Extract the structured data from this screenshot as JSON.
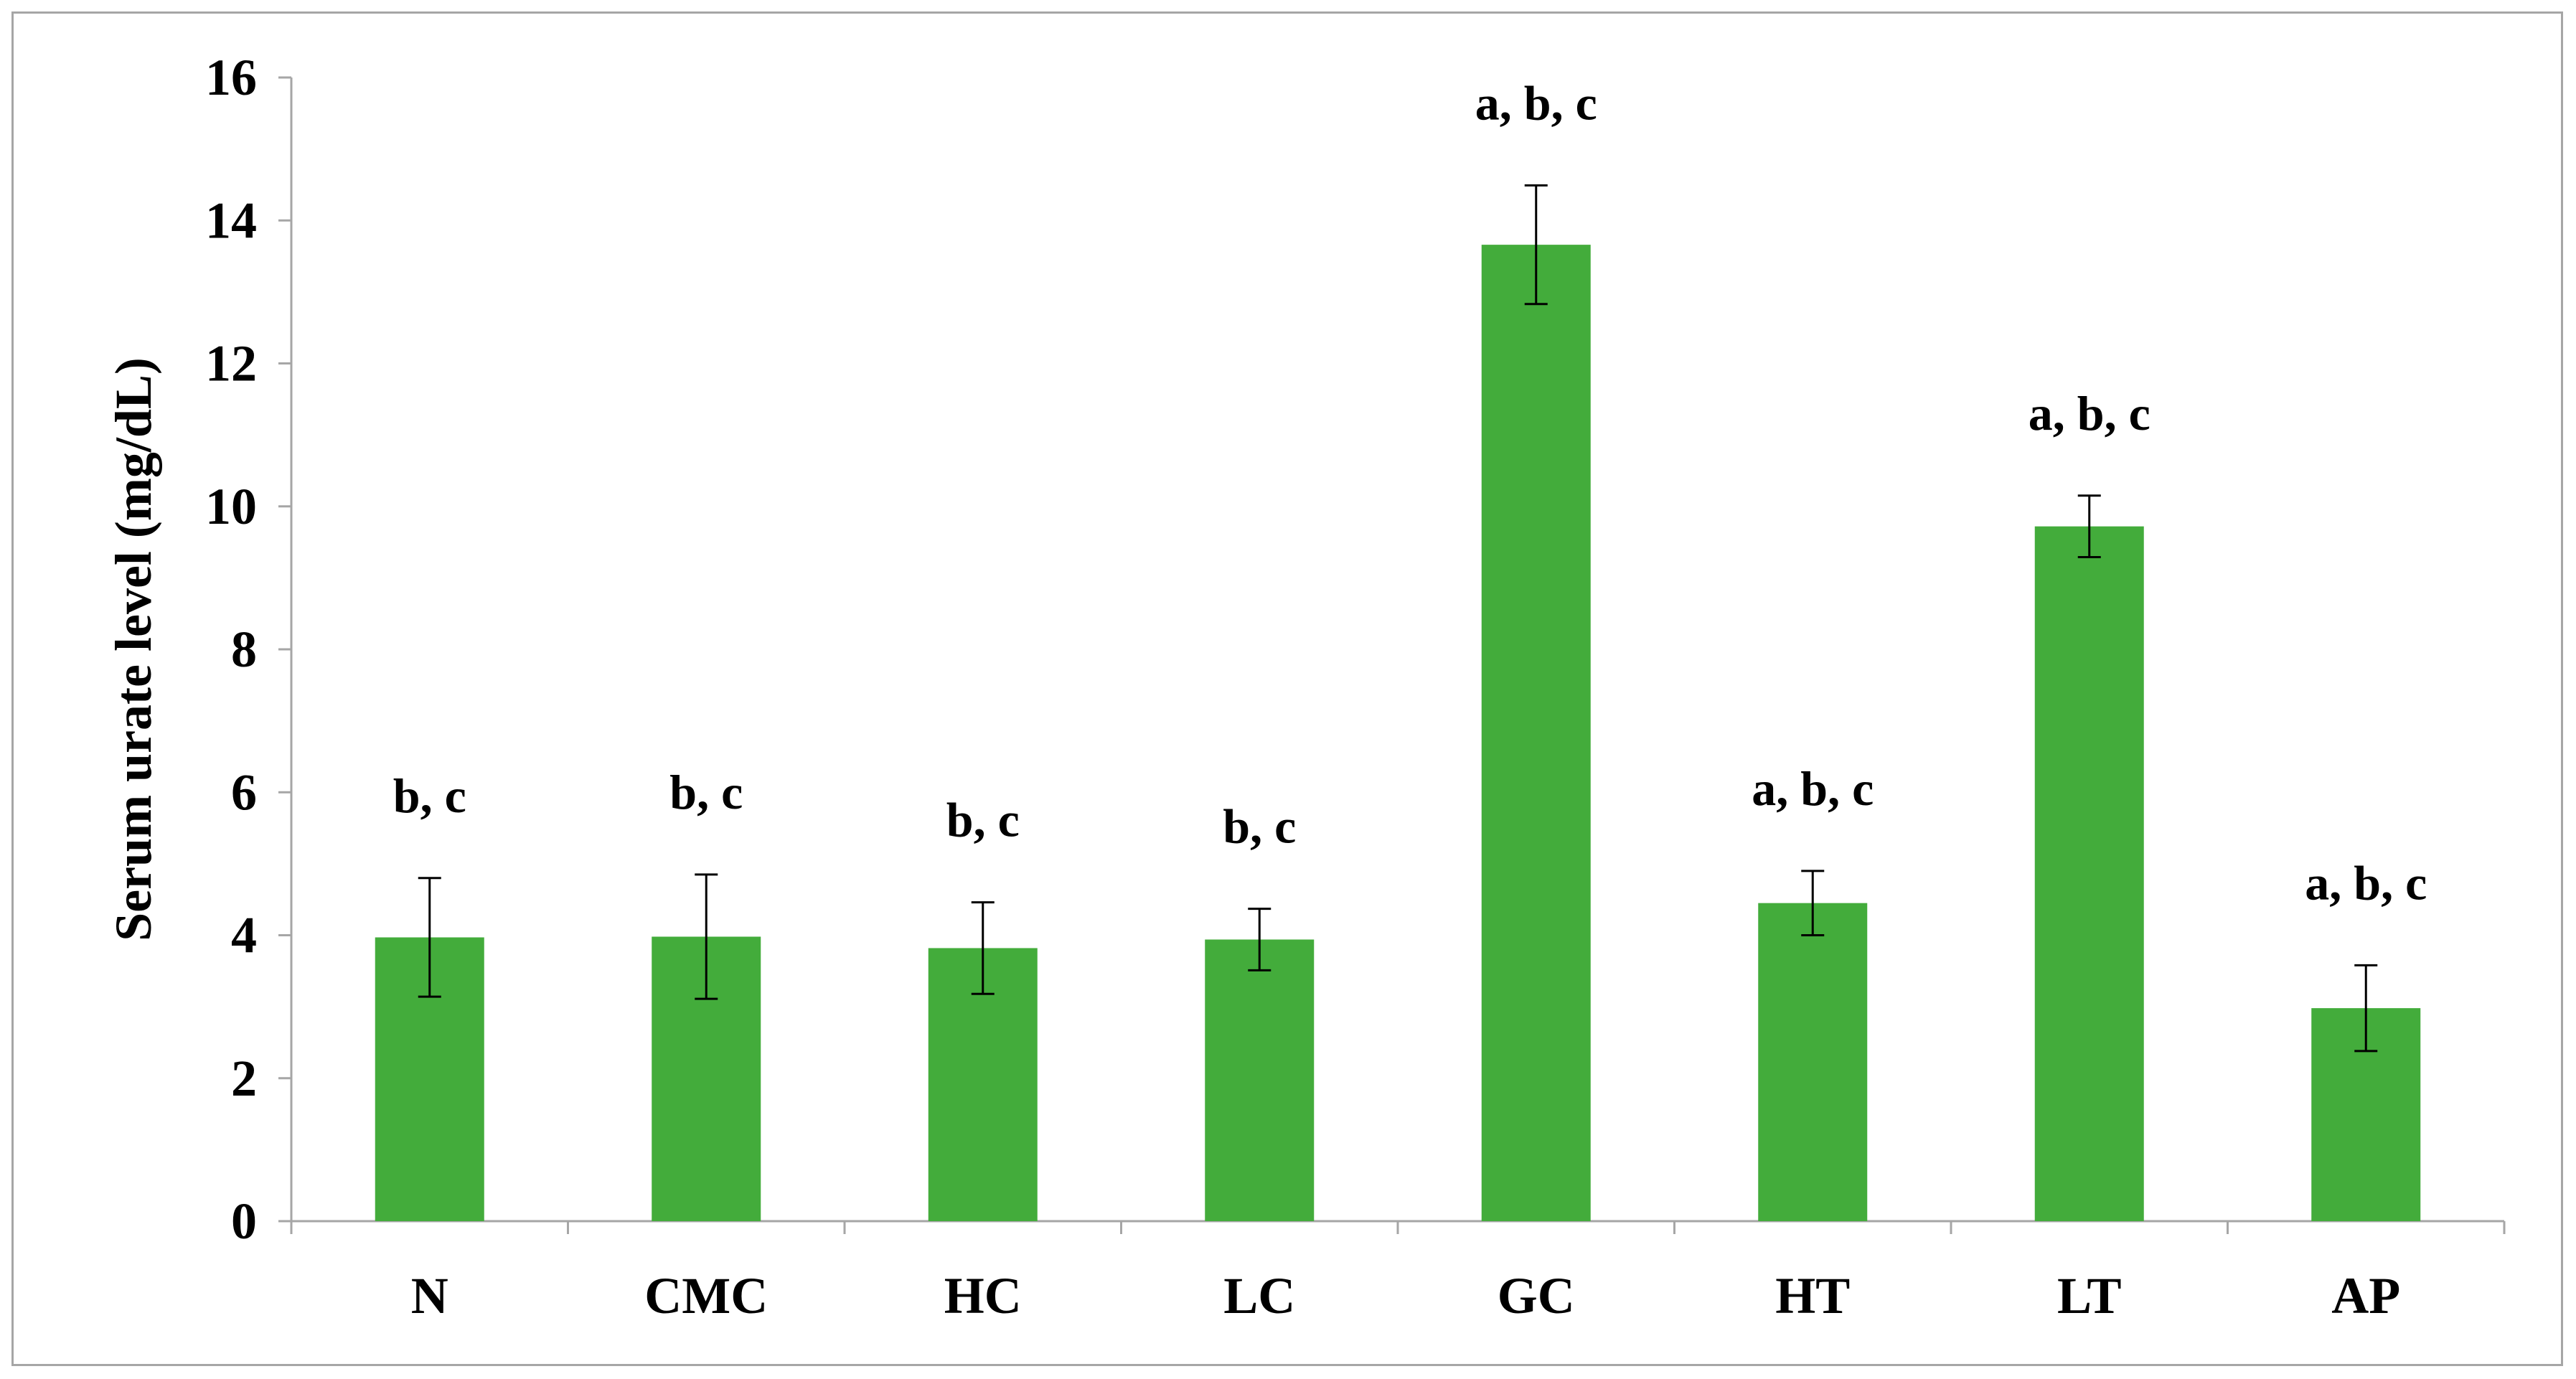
{
  "chart_data": {
    "type": "bar",
    "title": "",
    "xlabel": "",
    "ylabel": "Serum urate level (mg/dL)",
    "ylim": [
      0,
      16
    ],
    "yticks": [
      0,
      2,
      4,
      6,
      8,
      10,
      12,
      14,
      16
    ],
    "grid": false,
    "legend": "none",
    "bar_color": "#43ac3b",
    "categories": [
      "N",
      "CMC",
      "HC",
      "LC",
      "GC",
      "HT",
      "LT",
      "AP"
    ],
    "series": [
      {
        "values": [
          3.97,
          3.98,
          3.82,
          3.94,
          13.66,
          4.45,
          9.72,
          2.98
        ],
        "error": [
          0.83,
          0.87,
          0.64,
          0.43,
          0.83,
          0.45,
          0.43,
          0.6
        ]
      }
    ],
    "annotations": [
      "b, c",
      "b, c",
      "b, c",
      "b, c",
      "a, b, c",
      "a, b, c",
      "a, b, c",
      "a, b, c"
    ]
  }
}
